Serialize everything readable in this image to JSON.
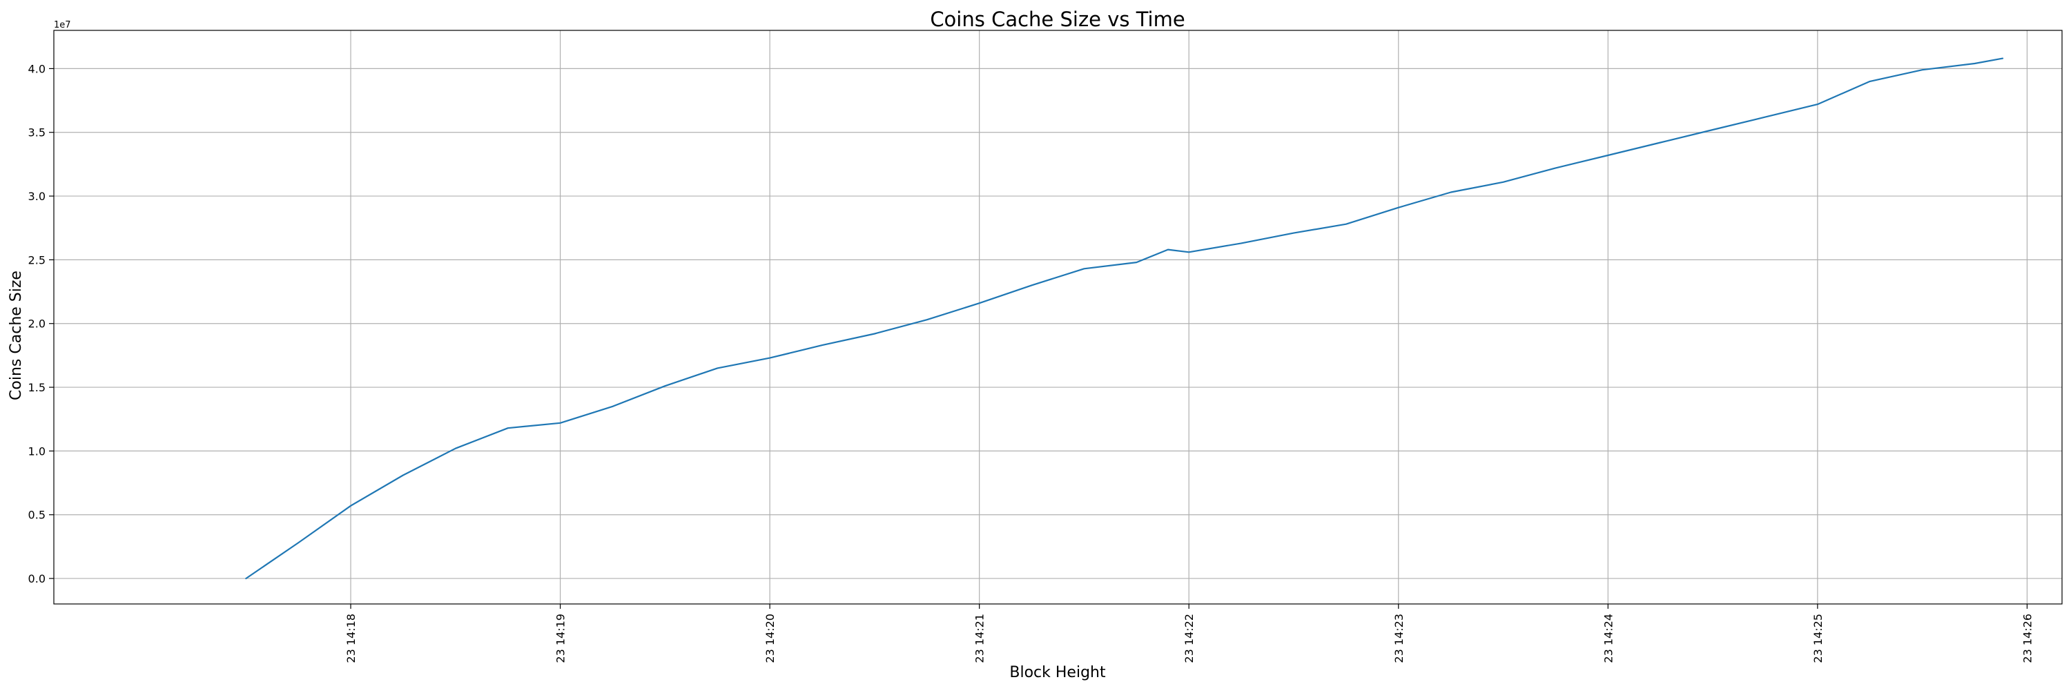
{
  "chart_data": {
    "type": "line",
    "title": "Coins Cache Size vs Time",
    "xlabel": "Block Height",
    "ylabel": "Coins Cache Size",
    "y_offset_label": "1e7",
    "y_scale_factor": 10000000,
    "x_is_time": true,
    "xlim": [
      "14:16:35",
      "14:26:10"
    ],
    "ylim": [
      -2000000,
      43000000
    ],
    "x_ticks": [
      {
        "value": "14:18:00",
        "label": "23 14:18"
      },
      {
        "value": "14:19:00",
        "label": "23 14:19"
      },
      {
        "value": "14:20:00",
        "label": "23 14:20"
      },
      {
        "value": "14:21:00",
        "label": "23 14:21"
      },
      {
        "value": "14:22:00",
        "label": "23 14:22"
      },
      {
        "value": "14:23:00",
        "label": "23 14:23"
      },
      {
        "value": "14:24:00",
        "label": "23 14:24"
      },
      {
        "value": "14:25:00",
        "label": "23 14:25"
      },
      {
        "value": "14:26:00",
        "label": "23 14:26"
      }
    ],
    "y_ticks": [
      {
        "value": 0,
        "label": "0.0"
      },
      {
        "value": 5000000,
        "label": "0.5"
      },
      {
        "value": 10000000,
        "label": "1.0"
      },
      {
        "value": 15000000,
        "label": "1.5"
      },
      {
        "value": 20000000,
        "label": "2.0"
      },
      {
        "value": 25000000,
        "label": "2.5"
      },
      {
        "value": 30000000,
        "label": "3.0"
      },
      {
        "value": 35000000,
        "label": "3.5"
      },
      {
        "value": 40000000,
        "label": "4.0"
      }
    ],
    "grid": true,
    "series": [
      {
        "color": "#1f77b4",
        "x": [
          "14:17:30",
          "14:17:45",
          "14:18:00",
          "14:18:15",
          "14:18:30",
          "14:18:45",
          "14:19:00",
          "14:19:15",
          "14:19:30",
          "14:19:45",
          "14:20:00",
          "14:20:15",
          "14:20:30",
          "14:20:45",
          "14:21:00",
          "14:21:15",
          "14:21:30",
          "14:21:45",
          "14:21:54",
          "14:22:00",
          "14:22:15",
          "14:22:30",
          "14:22:45",
          "14:23:00",
          "14:23:15",
          "14:23:30",
          "14:23:45",
          "14:24:00",
          "14:24:15",
          "14:24:30",
          "14:24:45",
          "14:25:00",
          "14:25:15",
          "14:25:30",
          "14:25:45",
          "14:25:53"
        ],
        "y": [
          0,
          2800000,
          5700000,
          8100000,
          10200000,
          11800000,
          12200000,
          13500000,
          15100000,
          16500000,
          17300000,
          18300000,
          19200000,
          20300000,
          21600000,
          23000000,
          24300000,
          24800000,
          25800000,
          25600000,
          26300000,
          27100000,
          27800000,
          29100000,
          30300000,
          31100000,
          32200000,
          33200000,
          34200000,
          35200000,
          36200000,
          37200000,
          39000000,
          39900000,
          40400000,
          40800000
        ]
      }
    ]
  }
}
